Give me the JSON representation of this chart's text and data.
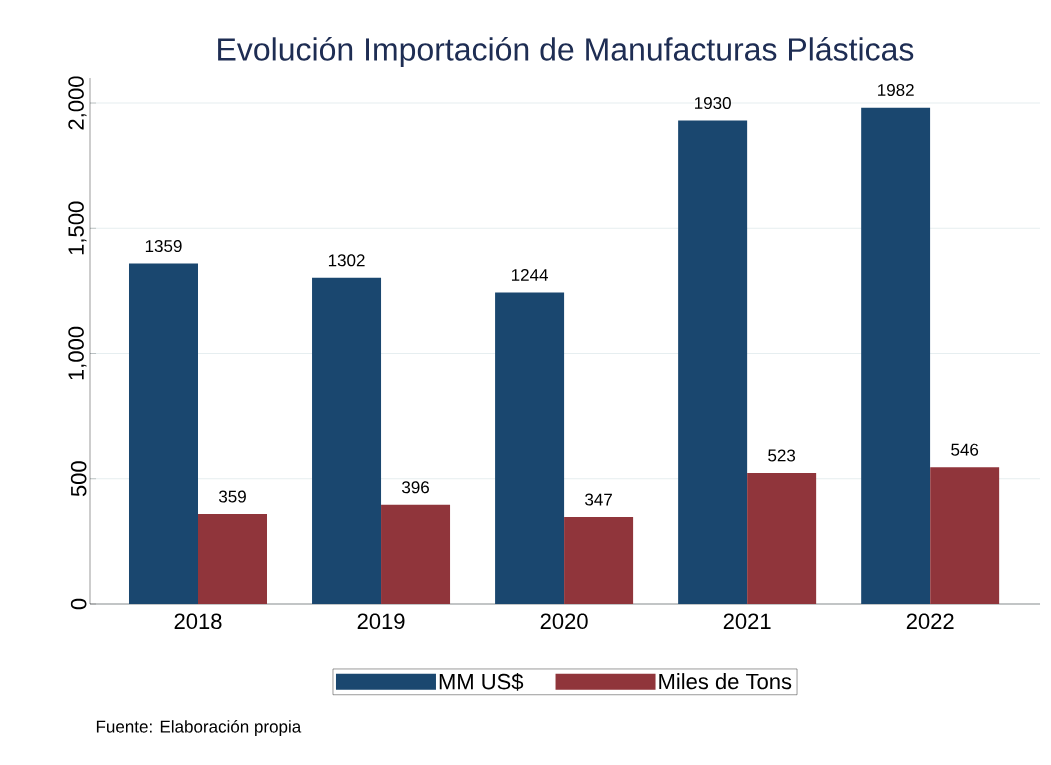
{
  "chart_data": {
    "type": "bar",
    "title": "Evolución Importación de Manufacturas Plásticas",
    "categories": [
      "2018",
      "2019",
      "2020",
      "2021",
      "2022"
    ],
    "series": [
      {
        "name": "MM US$",
        "color": "#1a476f",
        "values": [
          1359,
          1302,
          1244,
          1930,
          1982
        ]
      },
      {
        "name": "Miles de Tons",
        "color": "#90353b",
        "values": [
          359,
          396,
          347,
          523,
          546
        ]
      }
    ],
    "ylim": [
      0,
      2100
    ],
    "yticks": [
      {
        "value": 0,
        "label": "0"
      },
      {
        "value": 500,
        "label": "500"
      },
      {
        "value": 1000,
        "label": "1,000"
      },
      {
        "value": 1500,
        "label": "1,500"
      },
      {
        "value": 2000,
        "label": "2,000"
      }
    ],
    "grid": "y",
    "legend": "bottom",
    "data_labels": true,
    "annotations": [
      "Fuente: Elaboración propia"
    ]
  }
}
